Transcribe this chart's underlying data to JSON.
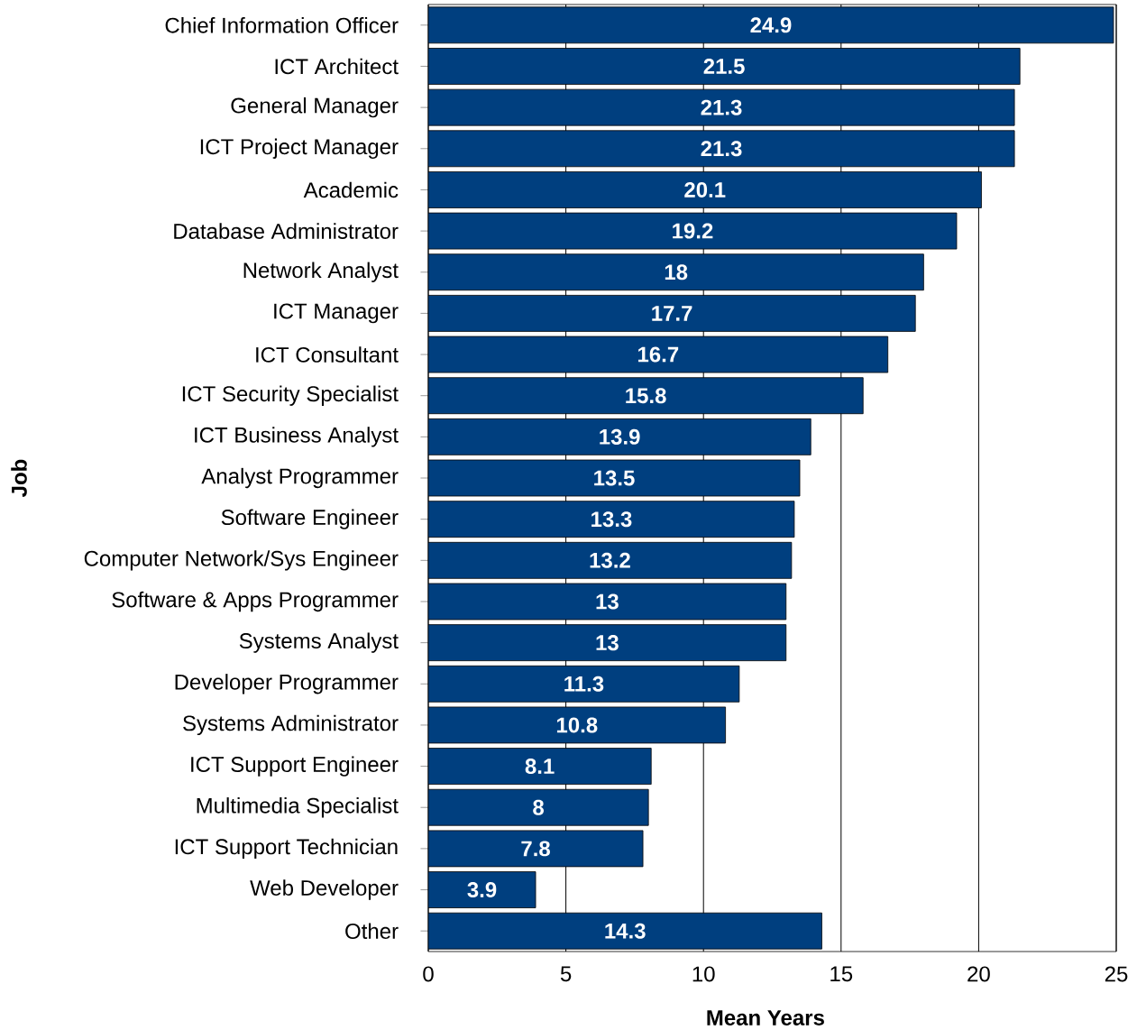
{
  "chart_data": {
    "type": "bar",
    "orientation": "horizontal",
    "xlabel": "Mean Years",
    "ylabel": "Job",
    "categories": [
      "Chief Information Officer",
      "ICT Architect",
      "General Manager",
      "ICT Project Manager",
      "Academic",
      "Database Administrator",
      "Network Analyst",
      "ICT Manager",
      "ICT Consultant",
      "ICT Security Specialist",
      "ICT Business Analyst",
      "Analyst Programmer",
      "Software Engineer",
      "Computer Network/Sys Engineer",
      "Software & Apps Programmer",
      "Systems Analyst",
      "Developer Programmer",
      "Systems Administrator",
      "ICT Support Engineer",
      "Multimedia Specialist",
      "ICT Support Technician",
      "Web Developer",
      "Other"
    ],
    "values": [
      24.9,
      21.5,
      21.3,
      21.3,
      20.1,
      19.2,
      18,
      17.7,
      16.7,
      15.8,
      13.9,
      13.5,
      13.3,
      13.2,
      13,
      13,
      11.3,
      10.8,
      8.1,
      8,
      7.8,
      3.9,
      14.3
    ],
    "color": "#003f7f",
    "xlim": [
      0,
      25
    ],
    "xticks": [
      0,
      5,
      10,
      15,
      20,
      25
    ],
    "grid": "x",
    "data_labels": true
  }
}
